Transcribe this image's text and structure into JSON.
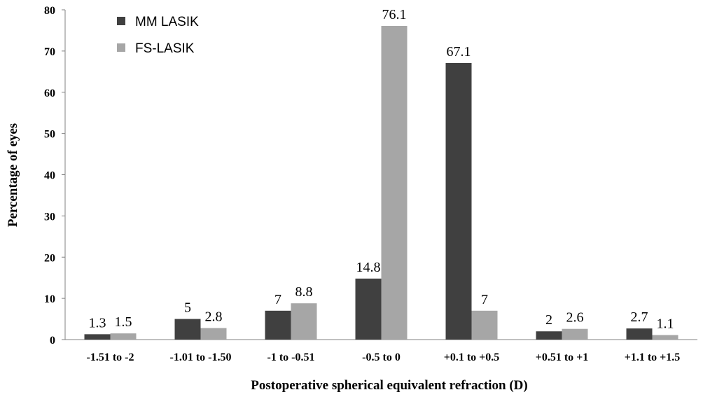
{
  "chart_data": {
    "type": "bar",
    "title": "",
    "xlabel": "Postoperative spherical equivalent refraction (D)",
    "ylabel": "Percentage of eyes",
    "ylim": [
      0,
      80
    ],
    "yticks": [
      "0",
      "10",
      "20",
      "30",
      "40",
      "50",
      "60",
      "70",
      "80"
    ],
    "grid": false,
    "legend_position": "top-left",
    "categories": [
      "-1.51 to -2",
      "-1.01 to -1.50",
      "-1 to -0.51",
      "-0.5 to 0",
      "+0.1 to +0.5",
      "+0.51 to +1",
      "+1.1 to +1.5"
    ],
    "series": [
      {
        "name": "MM LASIK",
        "color": "#404040",
        "values": [
          1.3,
          5,
          7,
          14.8,
          67.1,
          2,
          2.7
        ]
      },
      {
        "name": "FS-LASIK",
        "color": "#a6a6a6",
        "values": [
          1.5,
          2.8,
          8.8,
          76.1,
          7,
          2.6,
          1.1
        ]
      }
    ]
  }
}
